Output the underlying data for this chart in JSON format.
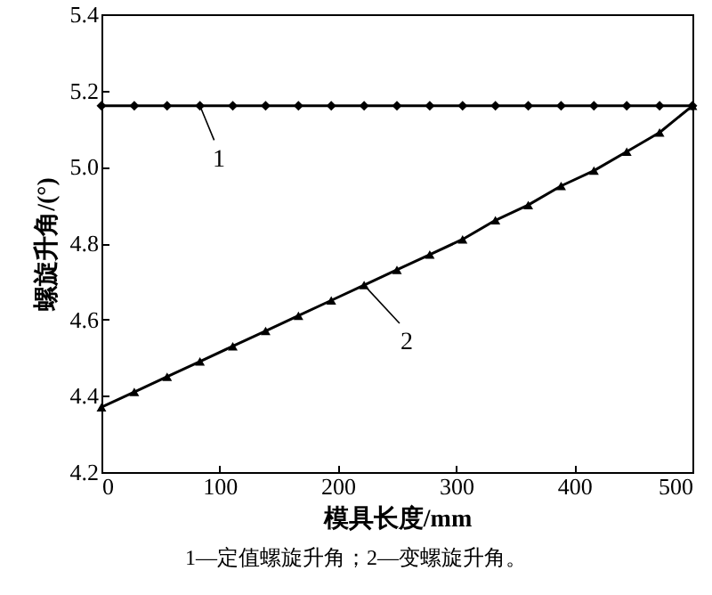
{
  "chart_data": {
    "type": "line",
    "xlabel": "模具长度/mm",
    "ylabel": "螺旋升角/(°)",
    "x": [
      0,
      27.78,
      55.56,
      83.33,
      111.11,
      138.89,
      166.67,
      194.44,
      222.22,
      250,
      277.78,
      305.56,
      333.33,
      361.11,
      388.89,
      416.67,
      444.44,
      472.22,
      500
    ],
    "series": [
      {
        "color": "#000000",
        "marker": "diamond",
        "values": [
          5.16,
          5.16,
          5.16,
          5.16,
          5.16,
          5.16,
          5.16,
          5.16,
          5.16,
          5.16,
          5.16,
          5.16,
          5.16,
          5.16,
          5.16,
          5.16,
          5.16,
          5.16,
          5.16
        ]
      },
      {
        "color": "#000000",
        "marker": "triangle",
        "values": [
          4.37,
          4.41,
          4.45,
          4.49,
          4.53,
          4.57,
          4.61,
          4.65,
          4.69,
          4.73,
          4.77,
          4.81,
          4.86,
          4.9,
          4.95,
          4.99,
          5.04,
          5.09,
          5.16
        ]
      }
    ],
    "xlim": [
      0,
      500
    ],
    "xticks": [
      0,
      100,
      200,
      300,
      400,
      500
    ],
    "ylim": [
      4.2,
      5.4
    ],
    "yticks": [
      4.2,
      4.4,
      4.6,
      4.8,
      {
        "value": 5,
        "label": "5.0"
      },
      5.2,
      5.4
    ],
    "grid": false,
    "line_style": "solid",
    "annotations": [
      "1—定值螺旋升角；2—变螺旋升角。",
      {
        "text": "1",
        "x": 83.33,
        "y": 5.16
      },
      {
        "text": "2",
        "x": 222.22,
        "y": 4.69
      }
    ]
  }
}
